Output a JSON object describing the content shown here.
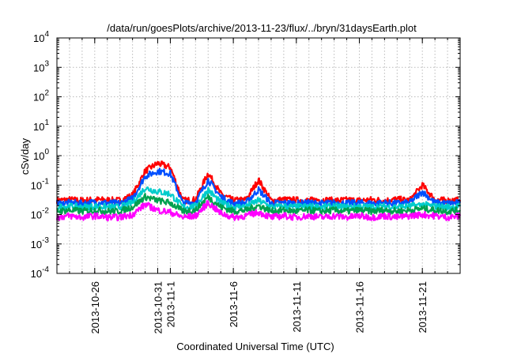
{
  "chart_data": {
    "type": "line",
    "title": "/data/run/goesPlots/archive/2013-11-23/flux/../bryn/31daysEarth.plot",
    "xlabel": "Coordinated Universal Time (UTC)",
    "ylabel": "cSv/day",
    "y_scale": "log",
    "ylim_exponents": [
      -4,
      4
    ],
    "y_ticks": [
      {
        "base": "10",
        "exp": "-4",
        "value": 0.0001
      },
      {
        "base": "10",
        "exp": "-3",
        "value": 0.001
      },
      {
        "base": "10",
        "exp": "-2",
        "value": 0.01
      },
      {
        "base": "10",
        "exp": "-1",
        "value": 0.1
      },
      {
        "base": "10",
        "exp": "0",
        "value": 1
      },
      {
        "base": "10",
        "exp": "1",
        "value": 10
      },
      {
        "base": "10",
        "exp": "2",
        "value": 100
      },
      {
        "base": "10",
        "exp": "3",
        "value": 1000
      },
      {
        "base": "10",
        "exp": "4",
        "value": 10000
      }
    ],
    "xlim": [
      "2013-10-23",
      "2013-11-24"
    ],
    "x_ticks": [
      {
        "date": "2013-10-26",
        "label": "2013-10-26"
      },
      {
        "date": "2013-10-31",
        "label": "2013-10-31"
      },
      {
        "date": "2013-11-01",
        "label": "2013-11-1"
      },
      {
        "date": "2013-11-06",
        "label": "2013-11-6"
      },
      {
        "date": "2013-11-11",
        "label": "2013-11-11"
      },
      {
        "date": "2013-11-16",
        "label": "2013-11-16"
      },
      {
        "date": "2013-11-21",
        "label": "2013-11-21"
      }
    ],
    "grid": true,
    "legend": "none",
    "x_dates": [
      "2013-10-23",
      "2013-10-24",
      "2013-10-25",
      "2013-10-26",
      "2013-10-27",
      "2013-10-28",
      "2013-10-29",
      "2013-10-30",
      "2013-10-31",
      "2013-11-01",
      "2013-11-02",
      "2013-11-03",
      "2013-11-04",
      "2013-11-05",
      "2013-11-06",
      "2013-11-07",
      "2013-11-08",
      "2013-11-09",
      "2013-11-10",
      "2013-11-11",
      "2013-11-12",
      "2013-11-13",
      "2013-11-14",
      "2013-11-15",
      "2013-11-16",
      "2013-11-17",
      "2013-11-18",
      "2013-11-19",
      "2013-11-20",
      "2013-11-21",
      "2013-11-22",
      "2013-11-23",
      "2013-11-24"
    ],
    "series": [
      {
        "color": "#ff0000",
        "values": [
          0.03,
          0.032,
          0.03,
          0.032,
          0.031,
          0.03,
          0.045,
          0.3,
          0.55,
          0.4,
          0.03,
          0.032,
          0.26,
          0.05,
          0.03,
          0.032,
          0.15,
          0.03,
          0.032,
          0.031,
          0.03,
          0.032,
          0.03,
          0.031,
          0.03,
          0.032,
          0.03,
          0.033,
          0.03,
          0.1,
          0.032,
          0.03,
          0.031
        ]
      },
      {
        "color": "#0050ff",
        "values": [
          0.024,
          0.025,
          0.024,
          0.026,
          0.025,
          0.024,
          0.035,
          0.2,
          0.3,
          0.25,
          0.024,
          0.026,
          0.15,
          0.04,
          0.024,
          0.025,
          0.07,
          0.024,
          0.025,
          0.024,
          0.025,
          0.024,
          0.025,
          0.024,
          0.025,
          0.024,
          0.025,
          0.024,
          0.025,
          0.06,
          0.025,
          0.024,
          0.025
        ]
      },
      {
        "color": "#00cccc",
        "values": [
          0.018,
          0.019,
          0.018,
          0.019,
          0.018,
          0.018,
          0.025,
          0.08,
          0.06,
          0.05,
          0.018,
          0.019,
          0.07,
          0.025,
          0.018,
          0.019,
          0.03,
          0.018,
          0.019,
          0.018,
          0.019,
          0.018,
          0.019,
          0.018,
          0.019,
          0.018,
          0.019,
          0.018,
          0.019,
          0.022,
          0.019,
          0.018,
          0.019
        ]
      },
      {
        "color": "#00a050",
        "values": [
          0.013,
          0.014,
          0.013,
          0.014,
          0.013,
          0.013,
          0.018,
          0.04,
          0.03,
          0.025,
          0.013,
          0.014,
          0.04,
          0.018,
          0.013,
          0.014,
          0.02,
          0.013,
          0.014,
          0.013,
          0.014,
          0.013,
          0.014,
          0.013,
          0.014,
          0.013,
          0.014,
          0.013,
          0.014,
          0.016,
          0.014,
          0.013,
          0.014
        ]
      },
      {
        "color": "#ff00ff",
        "values": [
          0.008,
          0.009,
          0.008,
          0.009,
          0.008,
          0.008,
          0.01,
          0.022,
          0.014,
          0.012,
          0.008,
          0.009,
          0.025,
          0.011,
          0.008,
          0.009,
          0.012,
          0.008,
          0.009,
          0.008,
          0.009,
          0.008,
          0.009,
          0.008,
          0.009,
          0.008,
          0.009,
          0.008,
          0.009,
          0.01,
          0.009,
          0.008,
          0.009
        ]
      }
    ]
  }
}
